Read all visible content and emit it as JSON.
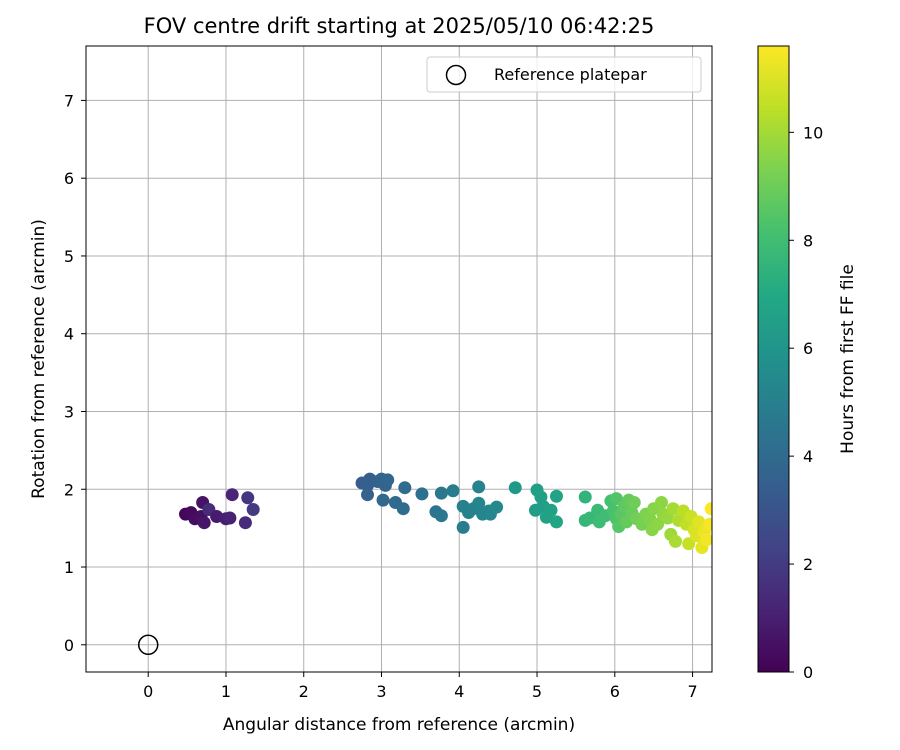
{
  "chart_data": {
    "type": "scatter",
    "title": "FOV centre drift starting at 2025/05/10 06:42:25",
    "xlabel": "Angular distance from reference (arcmin)",
    "ylabel": "Rotation from reference (arcmin)",
    "xlim": [
      -0.8,
      7.25
    ],
    "ylim": [
      -0.35,
      7.7
    ],
    "xticks": [
      "0",
      "1",
      "2",
      "3",
      "4",
      "5",
      "6",
      "7"
    ],
    "yticks": [
      "0",
      "1",
      "2",
      "3",
      "4",
      "5",
      "6",
      "7"
    ],
    "grid": true,
    "legend": {
      "position": "upper right",
      "entries": [
        "Reference platepar"
      ]
    },
    "reference_point": {
      "x": 0,
      "y": 0,
      "marker": "open-circle",
      "label": "Reference platepar"
    },
    "colorbar": {
      "label": "Hours from first FF file",
      "colormap": "viridis",
      "range": [
        0,
        11.6
      ],
      "ticks": [
        "0",
        "2",
        "4",
        "6",
        "8",
        "10"
      ]
    },
    "points": [
      {
        "x": 0.48,
        "y": 1.68,
        "c": 0.2
      },
      {
        "x": 0.55,
        "y": 1.7,
        "c": 0.3
      },
      {
        "x": 0.6,
        "y": 1.62,
        "c": 0.4
      },
      {
        "x": 0.68,
        "y": 1.65,
        "c": 0.5
      },
      {
        "x": 0.7,
        "y": 1.83,
        "c": 0.6
      },
      {
        "x": 0.72,
        "y": 1.57,
        "c": 0.7
      },
      {
        "x": 0.78,
        "y": 1.74,
        "c": 1.5
      },
      {
        "x": 0.88,
        "y": 1.65,
        "c": 0.9
      },
      {
        "x": 1.0,
        "y": 1.62,
        "c": 1.0
      },
      {
        "x": 1.05,
        "y": 1.63,
        "c": 1.1
      },
      {
        "x": 1.08,
        "y": 1.93,
        "c": 1.2
      },
      {
        "x": 1.25,
        "y": 1.57,
        "c": 1.4
      },
      {
        "x": 1.28,
        "y": 1.89,
        "c": 1.8
      },
      {
        "x": 1.35,
        "y": 1.74,
        "c": 2.0
      },
      {
        "x": 2.75,
        "y": 2.08,
        "c": 3.4
      },
      {
        "x": 2.82,
        "y": 2.05,
        "c": 3.5
      },
      {
        "x": 2.85,
        "y": 2.13,
        "c": 3.5
      },
      {
        "x": 2.82,
        "y": 1.93,
        "c": 3.6
      },
      {
        "x": 2.95,
        "y": 2.1,
        "c": 3.6
      },
      {
        "x": 3.0,
        "y": 2.13,
        "c": 3.7
      },
      {
        "x": 3.05,
        "y": 2.05,
        "c": 3.7
      },
      {
        "x": 3.08,
        "y": 2.12,
        "c": 3.8
      },
      {
        "x": 3.02,
        "y": 1.86,
        "c": 3.9
      },
      {
        "x": 3.18,
        "y": 1.83,
        "c": 4.0
      },
      {
        "x": 3.28,
        "y": 1.75,
        "c": 4.1
      },
      {
        "x": 3.3,
        "y": 2.02,
        "c": 4.1
      },
      {
        "x": 3.52,
        "y": 1.94,
        "c": 4.3
      },
      {
        "x": 3.7,
        "y": 1.71,
        "c": 4.5
      },
      {
        "x": 3.77,
        "y": 1.66,
        "c": 4.6
      },
      {
        "x": 3.77,
        "y": 1.95,
        "c": 4.6
      },
      {
        "x": 3.92,
        "y": 1.98,
        "c": 4.8
      },
      {
        "x": 4.05,
        "y": 1.51,
        "c": 4.9
      },
      {
        "x": 4.05,
        "y": 1.78,
        "c": 5.0
      },
      {
        "x": 4.12,
        "y": 1.7,
        "c": 5.0
      },
      {
        "x": 4.18,
        "y": 1.75,
        "c": 5.1
      },
      {
        "x": 4.25,
        "y": 2.03,
        "c": 5.1
      },
      {
        "x": 4.25,
        "y": 1.82,
        "c": 5.2
      },
      {
        "x": 4.3,
        "y": 1.68,
        "c": 5.2
      },
      {
        "x": 4.38,
        "y": 1.72,
        "c": 5.3
      },
      {
        "x": 4.4,
        "y": 1.68,
        "c": 5.3
      },
      {
        "x": 4.48,
        "y": 1.77,
        "c": 5.4
      },
      {
        "x": 4.72,
        "y": 2.02,
        "c": 6.2
      },
      {
        "x": 5.0,
        "y": 1.99,
        "c": 6.4
      },
      {
        "x": 4.98,
        "y": 1.73,
        "c": 6.4
      },
      {
        "x": 5.05,
        "y": 1.9,
        "c": 6.5
      },
      {
        "x": 5.08,
        "y": 1.78,
        "c": 6.5
      },
      {
        "x": 5.12,
        "y": 1.64,
        "c": 6.6
      },
      {
        "x": 5.18,
        "y": 1.73,
        "c": 6.6
      },
      {
        "x": 5.25,
        "y": 1.91,
        "c": 6.7
      },
      {
        "x": 5.25,
        "y": 1.58,
        "c": 6.8
      },
      {
        "x": 5.62,
        "y": 1.9,
        "c": 7.5
      },
      {
        "x": 5.62,
        "y": 1.6,
        "c": 7.6
      },
      {
        "x": 5.68,
        "y": 1.63,
        "c": 7.7
      },
      {
        "x": 5.78,
        "y": 1.73,
        "c": 7.8
      },
      {
        "x": 5.8,
        "y": 1.58,
        "c": 7.9
      },
      {
        "x": 5.88,
        "y": 1.66,
        "c": 8.0
      },
      {
        "x": 5.95,
        "y": 1.85,
        "c": 8.1
      },
      {
        "x": 5.98,
        "y": 1.72,
        "c": 8.2
      },
      {
        "x": 6.02,
        "y": 1.62,
        "c": 8.3
      },
      {
        "x": 6.02,
        "y": 1.88,
        "c": 8.4
      },
      {
        "x": 6.05,
        "y": 1.52,
        "c": 8.5
      },
      {
        "x": 6.08,
        "y": 1.68,
        "c": 8.6
      },
      {
        "x": 6.12,
        "y": 1.78,
        "c": 8.7
      },
      {
        "x": 6.15,
        "y": 1.58,
        "c": 8.8
      },
      {
        "x": 6.18,
        "y": 1.86,
        "c": 8.8
      },
      {
        "x": 6.22,
        "y": 1.7,
        "c": 8.9
      },
      {
        "x": 6.25,
        "y": 1.83,
        "c": 9.0
      },
      {
        "x": 6.28,
        "y": 1.62,
        "c": 9.1
      },
      {
        "x": 6.35,
        "y": 1.55,
        "c": 9.2
      },
      {
        "x": 6.4,
        "y": 1.68,
        "c": 9.3
      },
      {
        "x": 6.45,
        "y": 1.62,
        "c": 9.4
      },
      {
        "x": 6.48,
        "y": 1.48,
        "c": 9.5
      },
      {
        "x": 6.5,
        "y": 1.75,
        "c": 9.5
      },
      {
        "x": 6.55,
        "y": 1.55,
        "c": 9.6
      },
      {
        "x": 6.6,
        "y": 1.83,
        "c": 9.6
      },
      {
        "x": 6.62,
        "y": 1.68,
        "c": 9.7
      },
      {
        "x": 6.68,
        "y": 1.63,
        "c": 9.8
      },
      {
        "x": 6.72,
        "y": 1.42,
        "c": 9.9
      },
      {
        "x": 6.75,
        "y": 1.75,
        "c": 10.0
      },
      {
        "x": 6.78,
        "y": 1.33,
        "c": 10.1
      },
      {
        "x": 6.82,
        "y": 1.6,
        "c": 10.2
      },
      {
        "x": 6.88,
        "y": 1.72,
        "c": 10.4
      },
      {
        "x": 6.92,
        "y": 1.55,
        "c": 10.5
      },
      {
        "x": 6.95,
        "y": 1.3,
        "c": 10.6
      },
      {
        "x": 6.98,
        "y": 1.65,
        "c": 10.7
      },
      {
        "x": 7.02,
        "y": 1.48,
        "c": 10.9
      },
      {
        "x": 7.05,
        "y": 1.4,
        "c": 11.0
      },
      {
        "x": 7.08,
        "y": 1.58,
        "c": 11.1
      },
      {
        "x": 7.12,
        "y": 1.25,
        "c": 11.2
      },
      {
        "x": 7.15,
        "y": 1.45,
        "c": 11.3
      },
      {
        "x": 7.18,
        "y": 1.35,
        "c": 11.4
      },
      {
        "x": 7.22,
        "y": 1.55,
        "c": 11.5
      },
      {
        "x": 7.24,
        "y": 1.75,
        "c": 11.6
      }
    ]
  }
}
